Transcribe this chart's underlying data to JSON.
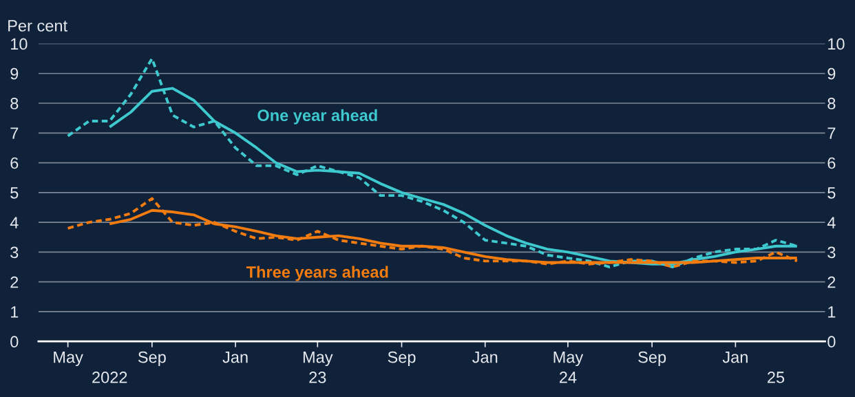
{
  "chart_data": {
    "type": "line",
    "ylabel": "Per cent",
    "x": [
      "2022-05",
      "2022-06",
      "2022-07",
      "2022-08",
      "2022-09",
      "2022-10",
      "2022-11",
      "2022-12",
      "2023-01",
      "2023-02",
      "2023-03",
      "2023-04",
      "2023-05",
      "2023-06",
      "2023-07",
      "2023-08",
      "2023-09",
      "2023-10",
      "2023-11",
      "2023-12",
      "2024-01",
      "2024-02",
      "2024-03",
      "2024-04",
      "2024-05",
      "2024-06",
      "2024-07",
      "2024-08",
      "2024-09",
      "2024-10",
      "2024-11",
      "2024-12",
      "2025-01",
      "2025-02",
      "2025-03",
      "2025-04"
    ],
    "series": [
      {
        "color": "#3ec9cf",
        "line_style": "dashed",
        "values": [
          6.9,
          7.4,
          7.4,
          8.3,
          9.5,
          7.6,
          7.2,
          7.4,
          6.5,
          5.9,
          5.9,
          5.6,
          5.9,
          5.7,
          5.5,
          4.9,
          4.9,
          4.7,
          4.4,
          4.0,
          3.4,
          3.3,
          3.2,
          2.9,
          2.8,
          2.7,
          2.5,
          2.7,
          2.7,
          2.5,
          2.8,
          3.0,
          3.1,
          3.1,
          3.4,
          3.2
        ]
      },
      {
        "name": "One year ahead",
        "color": "#3ec9cf",
        "line_style": "solid",
        "values": [
          null,
          null,
          7.2,
          7.7,
          8.4,
          8.5,
          8.1,
          7.4,
          7.0,
          6.5,
          6.0,
          5.7,
          5.75,
          5.7,
          5.65,
          5.3,
          5.0,
          4.8,
          4.6,
          4.3,
          3.9,
          3.55,
          3.3,
          3.1,
          3.0,
          2.85,
          2.7,
          2.65,
          2.6,
          2.6,
          2.75,
          2.85,
          3.0,
          3.1,
          3.2,
          3.2
        ]
      },
      {
        "color": "#f27c0f",
        "line_style": "dashed",
        "values": [
          3.8,
          4.0,
          4.1,
          4.3,
          4.8,
          4.0,
          3.9,
          4.0,
          3.7,
          3.45,
          3.5,
          3.4,
          3.7,
          3.4,
          3.3,
          3.2,
          3.1,
          3.2,
          3.1,
          2.8,
          2.7,
          2.7,
          2.7,
          2.6,
          2.7,
          2.6,
          2.65,
          2.75,
          2.7,
          2.5,
          2.7,
          2.7,
          2.65,
          2.7,
          3.0,
          2.7
        ]
      },
      {
        "name": "Three years ahead",
        "color": "#f27c0f",
        "line_style": "solid",
        "values": [
          null,
          null,
          3.95,
          4.1,
          4.4,
          4.35,
          4.25,
          3.95,
          3.85,
          3.7,
          3.55,
          3.45,
          3.5,
          3.55,
          3.45,
          3.3,
          3.2,
          3.2,
          3.15,
          3.0,
          2.85,
          2.75,
          2.7,
          2.65,
          2.65,
          2.65,
          2.65,
          2.65,
          2.65,
          2.65,
          2.65,
          2.7,
          2.75,
          2.8,
          2.8,
          2.8
        ]
      }
    ],
    "x2lim": [
      "2022-03-19",
      "2025-05-12"
    ],
    "xlim": [
      "2022-03-19",
      "2025-05-12"
    ],
    "xticks": [
      {
        "value": "2022-05",
        "label": "May"
      },
      {
        "value": "2022-09",
        "label": "Sep"
      },
      {
        "value": "2023-01",
        "label": "Jan"
      },
      {
        "value": "2023-05",
        "label": "May"
      },
      {
        "value": "2023-09",
        "label": "Sep"
      },
      {
        "value": "2024-01",
        "label": "Jan"
      },
      {
        "value": "2024-05",
        "label": "May"
      },
      {
        "value": "2024-09",
        "label": "Sep"
      },
      {
        "value": "2025-01",
        "label": "Jan"
      }
    ],
    "x2ticks": [
      {
        "value": "2022-07",
        "label": "2022"
      },
      {
        "value": "2023-05",
        "label": "23"
      },
      {
        "value": "2024-05",
        "label": "24"
      },
      {
        "value": "2025-03",
        "label": "25"
      }
    ],
    "ylim": [
      0,
      10
    ],
    "yticks": [
      0,
      1,
      2,
      3,
      4,
      5,
      6,
      7,
      8,
      9,
      10
    ],
    "y2lim": [
      0,
      10
    ],
    "y2ticks": [
      0,
      1,
      2,
      3,
      4,
      5,
      6,
      7,
      8,
      9,
      10
    ],
    "grid": "y",
    "legend": false,
    "marker": "none"
  }
}
